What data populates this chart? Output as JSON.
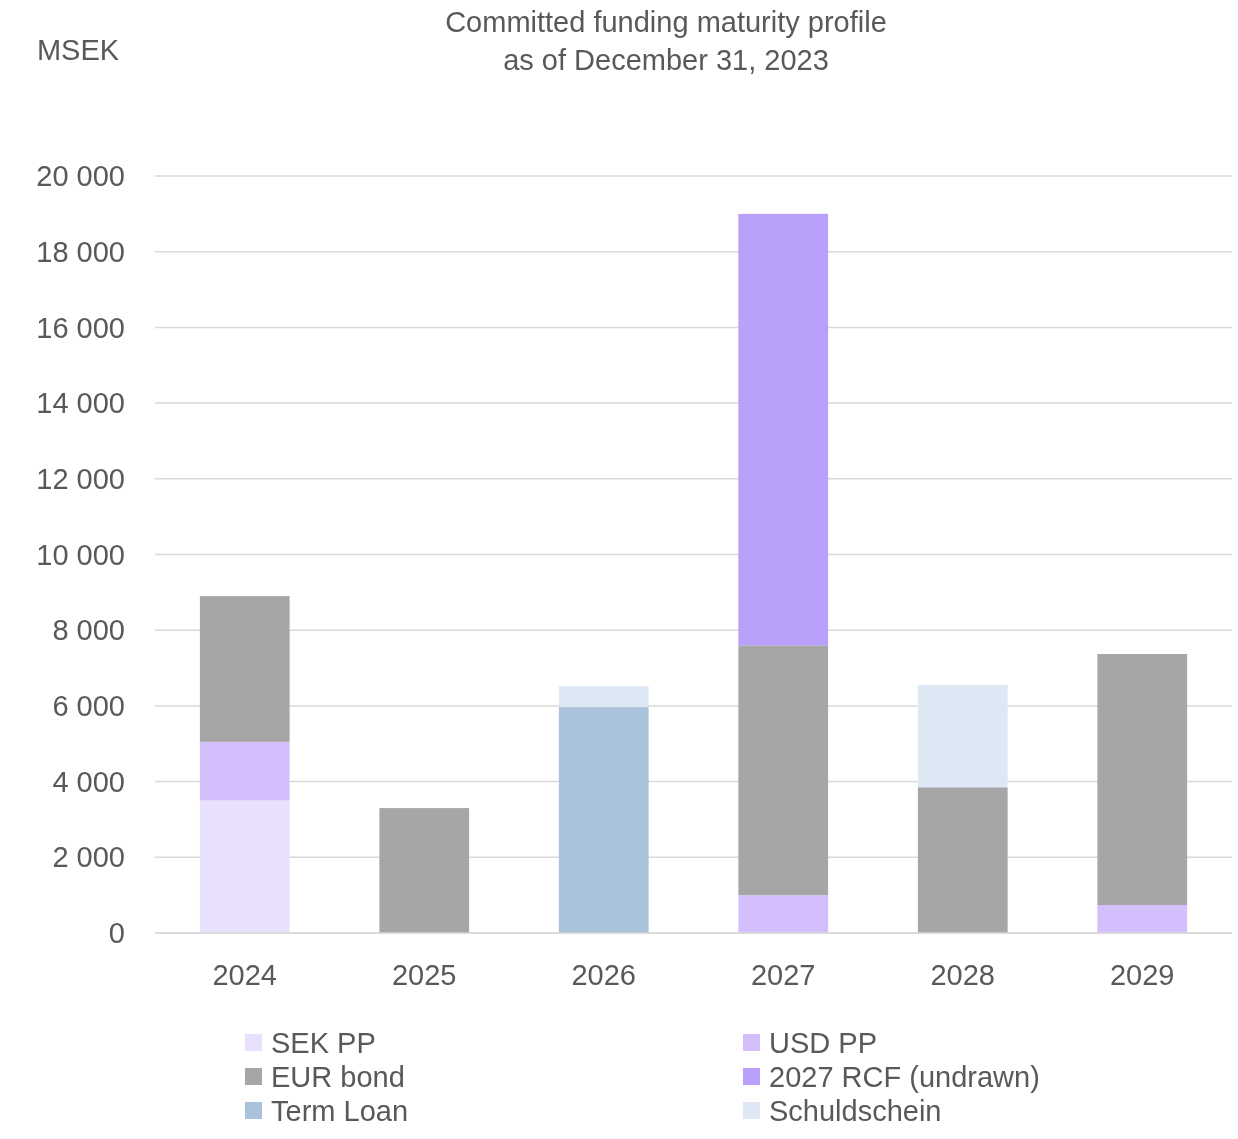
{
  "chart_data": {
    "type": "bar",
    "title": "Committed funding maturity profile\nas of December 31, 2023",
    "ylabel": "MSEK",
    "categories": [
      "2024",
      "2025",
      "2026",
      "2027",
      "2028",
      "2029"
    ],
    "stacked": true,
    "series": [
      {
        "name": "SEK PP",
        "color": "#e8e0fc",
        "values": [
          3500,
          0,
          0,
          0,
          0,
          0
        ]
      },
      {
        "name": "USD PP",
        "color": "#d4bffc",
        "values": [
          1550,
          0,
          0,
          1000,
          0,
          740
        ]
      },
      {
        "name": "EUR bond",
        "color": "#a6a6a6",
        "values": [
          3850,
          3300,
          0,
          6600,
          3850,
          6630
        ]
      },
      {
        "name": "2027 RCF (undrawn)",
        "color": "#b9a0fb",
        "values": [
          0,
          0,
          0,
          11400,
          0,
          0
        ]
      },
      {
        "name": "Term Loan",
        "color": "#abc2dd",
        "values": [
          0,
          0,
          5970,
          0,
          0,
          0
        ]
      },
      {
        "name": "Schuldschein",
        "color": "#dde8f4",
        "values": [
          0,
          0,
          550,
          0,
          2700,
          0
        ]
      }
    ],
    "ylim": [
      0,
      20000
    ],
    "yticks": [
      {
        "value": 0,
        "label": "0"
      },
      {
        "value": 2000,
        "label": "2 000"
      },
      {
        "value": 4000,
        "label": "4 000"
      },
      {
        "value": 6000,
        "label": "6 000"
      },
      {
        "value": 8000,
        "label": "8 000"
      },
      {
        "value": 10000,
        "label": "10 000"
      },
      {
        "value": 12000,
        "label": "12 000"
      },
      {
        "value": 14000,
        "label": "14 000"
      },
      {
        "value": 16000,
        "label": "16 000"
      },
      {
        "value": 18000,
        "label": "18 000"
      },
      {
        "value": 20000,
        "label": "20 000"
      }
    ],
    "grid": "y",
    "legend": "bottom"
  }
}
